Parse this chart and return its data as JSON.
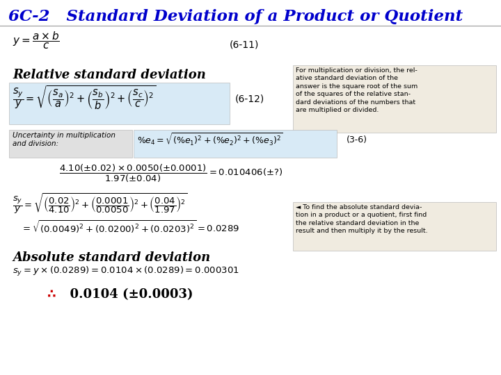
{
  "title": "6C-2   Standard Deviation of a Product or Quotient",
  "title_color": "#0000CC",
  "title_fontsize": 16.5,
  "bg_color": "#FFFFFF",
  "eq_label1": "(6-11)",
  "section1_label": "Relative standard deviation",
  "eq2_label": "(6-12)",
  "eq3_label": "(3-6)",
  "section2_label": "Absolute standard deviation",
  "right_text1": "For multiplication or division, the rel-\native standard deviation of the\nanswer is the square root of the sum\nof the squares of the relative stan-\ndard deviations of the numbers that\nare multiplied or divided.",
  "right_text2": "◄ To find the absolute standard devia-\ntion in a product or a quotient, first find\nthe relative standard deviation in the\nresult and then multiply it by the result.",
  "uncertainty_text": "Uncertainty in multiplication\nand division:",
  "final_symbol": "∴",
  "final_value": "  0.0104 (±0.0003)"
}
